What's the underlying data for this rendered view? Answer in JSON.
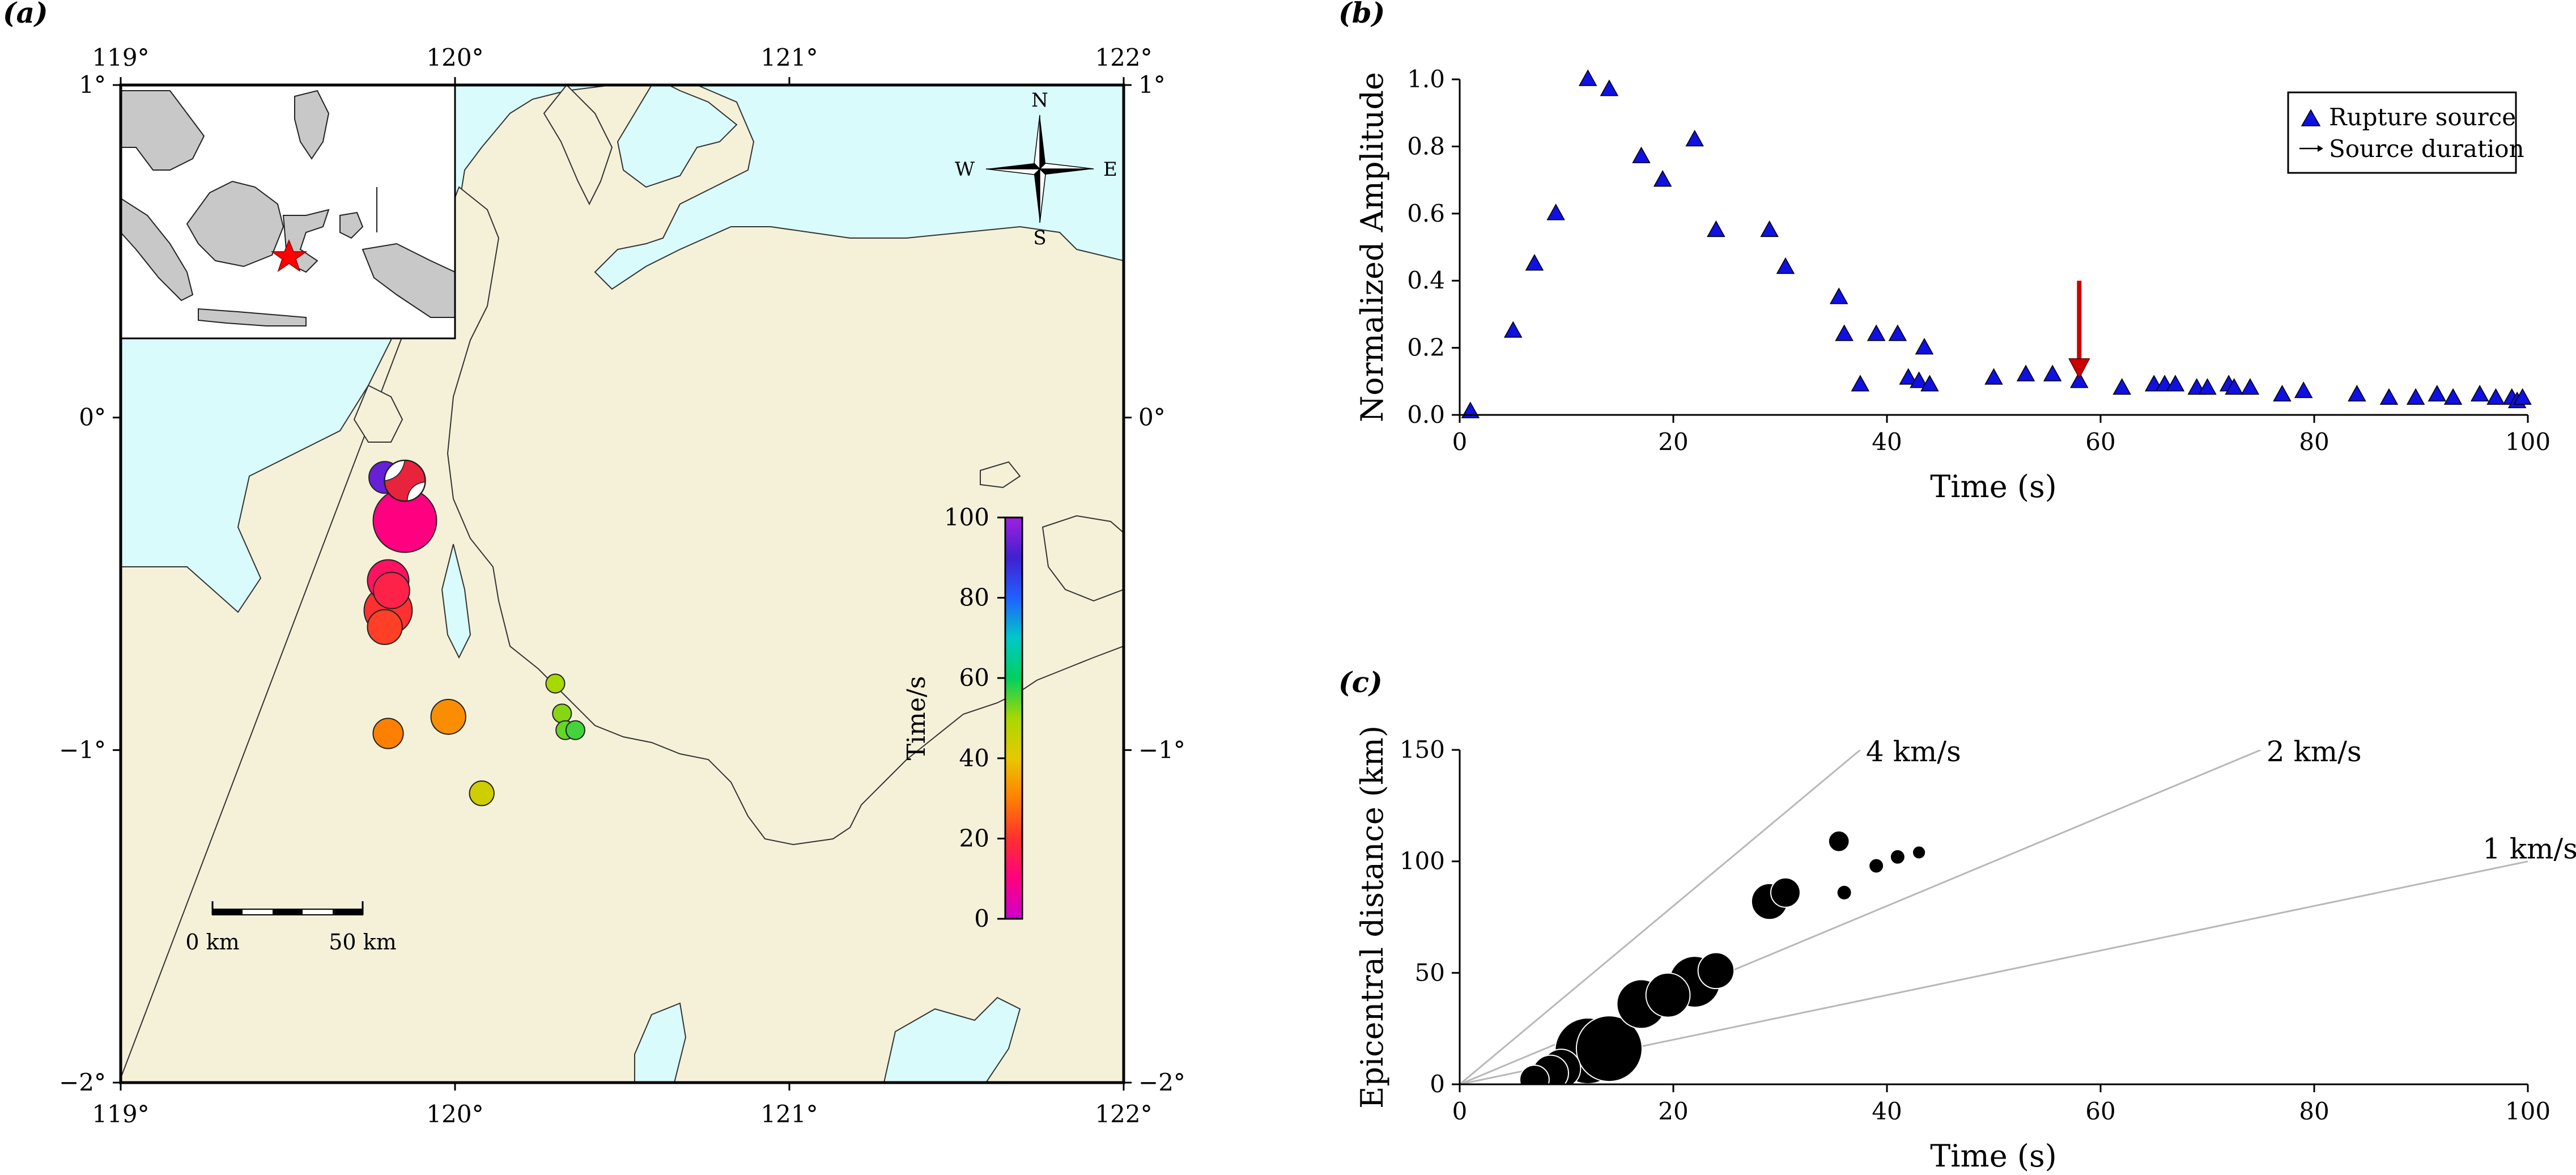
{
  "panel_labels": {
    "a": "(a)",
    "b": "(b)",
    "c": "(c)"
  },
  "chart_data": [
    {
      "type": "map",
      "panel": "(a)",
      "lon_range": [
        119,
        122
      ],
      "lat_range": [
        -2,
        1
      ],
      "lon_ticks": [
        119,
        120,
        121,
        122
      ],
      "lat_ticks": [
        1,
        0,
        -1,
        -2
      ],
      "lon_tick_labels": [
        "119°",
        "120°",
        "121°",
        "122°"
      ],
      "lat_tick_labels": [
        "1°",
        "0°",
        "−1°",
        "−2°"
      ],
      "colors": {
        "land": "#f5f1d9",
        "sea": "#d9fbfc",
        "inset_land": "#c8c8c8",
        "star": "#ff0000"
      },
      "sources": [
        {
          "lon": 119.79,
          "lat": -0.18,
          "size": 1.0,
          "time": 94
        },
        {
          "lon": 119.85,
          "lat": -0.31,
          "size": 4.0,
          "time": 10
        },
        {
          "lon": 119.8,
          "lat": -0.49,
          "size": 1.7,
          "time": 14
        },
        {
          "lon": 119.81,
          "lat": -0.52,
          "size": 1.3,
          "time": 17
        },
        {
          "lon": 119.8,
          "lat": -0.58,
          "size": 2.3,
          "time": 20
        },
        {
          "lon": 119.79,
          "lat": -0.63,
          "size": 1.2,
          "time": 22
        },
        {
          "lon": 119.8,
          "lat": -0.95,
          "size": 0.9,
          "time": 30
        },
        {
          "lon": 119.98,
          "lat": -0.9,
          "size": 1.2,
          "time": 32
        },
        {
          "lon": 120.08,
          "lat": -1.13,
          "size": 0.6,
          "time": 44
        },
        {
          "lon": 120.3,
          "lat": -0.8,
          "size": 0.35,
          "time": 50
        },
        {
          "lon": 120.32,
          "lat": -0.89,
          "size": 0.35,
          "time": 52
        },
        {
          "lon": 120.33,
          "lat": -0.94,
          "size": 0.35,
          "time": 54
        },
        {
          "lon": 120.36,
          "lat": -0.94,
          "size": 0.35,
          "time": 56
        }
      ],
      "mechanisms": [
        {
          "lon": 119.85,
          "lat": -0.19,
          "color": "#e8233c"
        }
      ],
      "colorbar": {
        "label": "Time/s",
        "range": [
          0,
          100
        ],
        "ticks": [
          0,
          20,
          40,
          60,
          80,
          100
        ]
      },
      "scalebar": {
        "labels": [
          "0 km",
          "50 km"
        ]
      },
      "compass": {
        "n": "N",
        "s": "S",
        "e": "E",
        "w": "W"
      }
    },
    {
      "type": "scatter",
      "panel": "(b)",
      "xlabel": "Time (s)",
      "ylabel": "Normalized Amplitude",
      "xlim": [
        0,
        100
      ],
      "ylim": [
        0,
        1.0
      ],
      "xticks": [
        0,
        20,
        40,
        60,
        80,
        100
      ],
      "yticks": [
        0.0,
        0.2,
        0.4,
        0.6,
        0.8,
        1.0
      ],
      "ytick_labels": [
        "0.0",
        "0.2",
        "0.4",
        "0.6",
        "0.8",
        "1.0"
      ],
      "series": [
        {
          "name": "Rupture source",
          "color": "#1010e0",
          "x": [
            1,
            5,
            7,
            9,
            12,
            14,
            17,
            19,
            22,
            24,
            29,
            30.5,
            35.5,
            36,
            37.5,
            39,
            41,
            42,
            43,
            43.5,
            44,
            50,
            53,
            55.5,
            58,
            62,
            65,
            66,
            67,
            69,
            70,
            72,
            72.5,
            74,
            77,
            79,
            84,
            87,
            89.5,
            91.5,
            93,
            95.5,
            97,
            98.5,
            99,
            99.5
          ],
          "y": [
            0.01,
            0.25,
            0.45,
            0.6,
            1.0,
            0.97,
            0.77,
            0.7,
            0.82,
            0.55,
            0.55,
            0.44,
            0.35,
            0.24,
            0.09,
            0.24,
            0.24,
            0.11,
            0.1,
            0.2,
            0.09,
            0.11,
            0.12,
            0.12,
            0.1,
            0.08,
            0.09,
            0.09,
            0.09,
            0.08,
            0.08,
            0.09,
            0.08,
            0.08,
            0.06,
            0.07,
            0.06,
            0.05,
            0.05,
            0.06,
            0.05,
            0.06,
            0.05,
            0.05,
            0.04,
            0.05
          ]
        }
      ],
      "legend": {
        "placement": "top-right",
        "entries": [
          "Rupture source",
          "Source duration"
        ]
      },
      "arrow": {
        "x": 58,
        "y_from": 0.4,
        "y_to": 0.11,
        "color": "#cc0000"
      }
    },
    {
      "type": "scatter",
      "panel": "(c)",
      "xlabel": "Time (s)",
      "ylabel": "Epicentral distance (km)",
      "xlim": [
        0,
        100
      ],
      "ylim": [
        0,
        150
      ],
      "xticks": [
        0,
        20,
        40,
        60,
        80,
        100
      ],
      "yticks": [
        0,
        50,
        100,
        150
      ],
      "velocity_lines": [
        {
          "label": "4 km/s",
          "speed": 4
        },
        {
          "label": "2 km/s",
          "speed": 2
        },
        {
          "label": "1 km/s",
          "speed": 1
        }
      ],
      "points": [
        {
          "x": 7,
          "y": 2,
          "size": 0.2
        },
        {
          "x": 8.5,
          "y": 5,
          "size": 0.3
        },
        {
          "x": 9.5,
          "y": 7,
          "size": 0.35
        },
        {
          "x": 12,
          "y": 15,
          "size": 1.0
        },
        {
          "x": 14,
          "y": 16,
          "size": 1.0
        },
        {
          "x": 17,
          "y": 36,
          "size": 0.55
        },
        {
          "x": 19.5,
          "y": 40,
          "size": 0.45
        },
        {
          "x": 22,
          "y": 46,
          "size": 0.6
        },
        {
          "x": 24,
          "y": 51,
          "size": 0.3
        },
        {
          "x": 29,
          "y": 82,
          "size": 0.3
        },
        {
          "x": 30.5,
          "y": 86,
          "size": 0.2
        },
        {
          "x": 35.5,
          "y": 109,
          "size": 0.1
        },
        {
          "x": 36,
          "y": 86,
          "size": 0.05
        },
        {
          "x": 39,
          "y": 98,
          "size": 0.05
        },
        {
          "x": 41,
          "y": 102,
          "size": 0.05
        },
        {
          "x": 43,
          "y": 104,
          "size": 0.04
        }
      ]
    }
  ]
}
